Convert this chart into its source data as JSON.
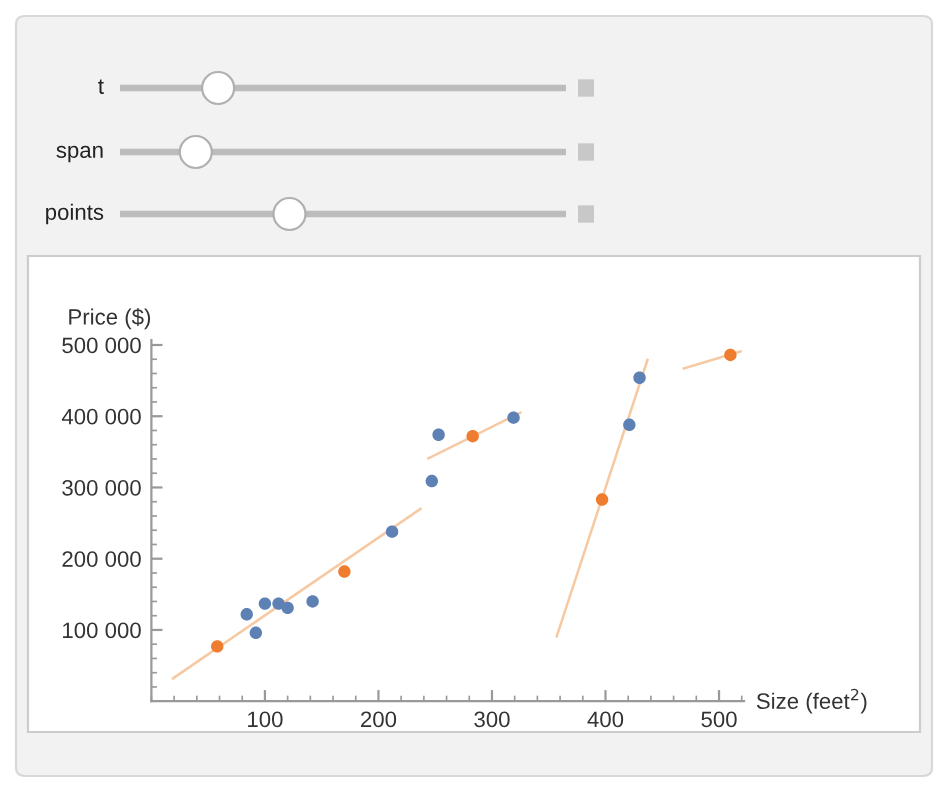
{
  "chart_data": {
    "type": "scatter",
    "xlabel": "Size (feet$^{2}$)",
    "ylabel": "Price ($)",
    "annotations": [
      "t",
      "span",
      "points"
    ],
    "series": [
      {
        "type": "line",
        "color": "#f6c9a2",
        "x": [
          19,
          237
        ],
        "values": [
          32000,
          270000
        ]
      },
      {
        "type": "line",
        "color": "#f6c9a2",
        "x": [
          244,
          325
        ],
        "values": [
          341000,
          405000
        ]
      },
      {
        "type": "line",
        "color": "#f6c9a2",
        "x": [
          357,
          437
        ],
        "values": [
          91000,
          479000
        ]
      },
      {
        "type": "line",
        "color": "#f6c9a2",
        "x": [
          469,
          519
        ],
        "values": [
          467000,
          491000
        ]
      },
      {
        "marker": "circle",
        "color": "#5e81b5",
        "x": [
          84,
          92,
          100,
          112,
          120,
          142,
          212,
          247,
          253,
          319,
          421,
          430
        ],
        "values": [
          122000,
          96000,
          137000,
          137000,
          131000,
          140000,
          238000,
          309000,
          374000,
          398000,
          388000,
          454000
        ]
      },
      {
        "marker": "circle",
        "color": "#ef7d2f",
        "x": [
          58,
          170,
          283,
          397,
          510
        ],
        "values": [
          77000,
          182000,
          372000,
          283000,
          486000
        ]
      }
    ],
    "xlim": [
      0,
      522
    ],
    "ylim": [
      0,
      507000
    ],
    "xticks": [
      100,
      200,
      300,
      400,
      500
    ],
    "yticks": [
      {
        "value": 100000,
        "label": "100 000"
      },
      {
        "value": 200000,
        "label": "200 000"
      },
      {
        "value": 300000,
        "label": "300 000"
      },
      {
        "value": 400000,
        "label": "400 000"
      },
      {
        "value": 500000,
        "label": "500 000"
      }
    ],
    "grid": false,
    "legend": false
  }
}
